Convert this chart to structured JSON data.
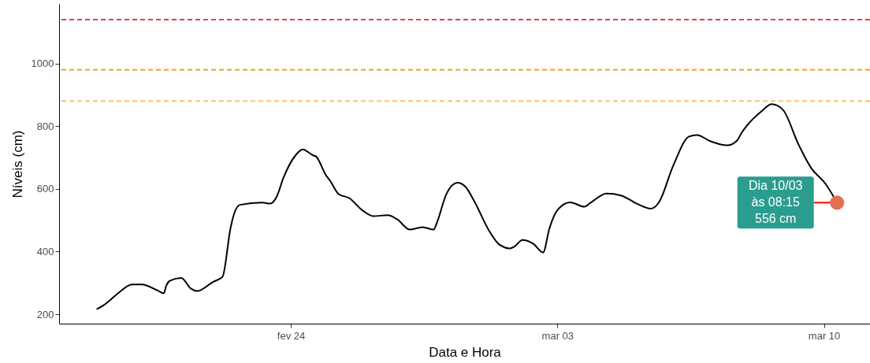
{
  "chart_data": {
    "type": "line",
    "xlabel": "Data e Hora",
    "ylabel": "Níveis (cm)",
    "xlim": [
      "--02-17T22:00",
      "--03-11T05:00"
    ],
    "ylim": [
      170,
      1190
    ],
    "xticks": [
      {
        "value": "--02-24",
        "label": "fev 24"
      },
      {
        "value": "--03-03",
        "label": "mar 03"
      },
      {
        "value": "--03-10",
        "label": "mar 10"
      }
    ],
    "yticks": [
      200,
      400,
      600,
      800,
      1000
    ],
    "grid": false,
    "marker": "none",
    "line_style": "solid",
    "series": [
      {
        "color": "#000000",
        "x": [
          "--02-18T22:00",
          "--02-19T03:00",
          "--02-19T11:00",
          "--02-19T20:00",
          "--02-20T02:00",
          "--02-20T12:00",
          "--02-20T16:00",
          "--02-20T17:30",
          "--02-20T20:00",
          "--02-21T03:00",
          "--02-21T09:00",
          "--02-21T13:00",
          "--02-21T23:00",
          "--02-22T05:00",
          "--02-22T10:00",
          "--02-22T12:00",
          "--02-22T16:00",
          "--02-23T06:00",
          "--02-23T11:00",
          "--02-23T15:00",
          "--02-23T19:30",
          "--02-24T03:00",
          "--02-24T07:30",
          "--02-24T14:00",
          "--02-24T16:00",
          "--02-24T22:00",
          "--02-25T01:00",
          "--02-25T06:00",
          "--02-25T13:00",
          "--02-25T21:00",
          "--02-26T04:00",
          "--02-26T13:00",
          "--02-26T19:00",
          "--02-27T03:00",
          "--02-27T11:00",
          "--02-27T18:00",
          "--02-27T20:00",
          "--02-28T02:00",
          "--02-28T09:00",
          "--02-28T14:00",
          "--02-28T20:00",
          "--03-01T05:00",
          "--03-01T11:00",
          "--03-01T18:00",
          "--03-01T21:00",
          "--03-02T02:00",
          "--03-02T09:00",
          "--03-02T15:00",
          "--03-02T19:00",
          "--03-03T00:00",
          "--03-03T08:00",
          "--03-03T17:00",
          "--03-03T21:00",
          "--03-04T07:00",
          "--03-04T16:00",
          "--03-05T02:00",
          "--03-05T11:00",
          "--03-05T16:00",
          "--03-06T01:00",
          "--03-06T11:00",
          "--03-06T16:00",
          "--03-07T00:00",
          "--03-07T11:00",
          "--03-07T17:00",
          "--03-07T20:00",
          "--03-07T23:00",
          "--03-08T09:00",
          "--03-08T15:00",
          "--03-08T22:00",
          "--03-09T08:00",
          "--03-09T16:00",
          "--03-10T01:00",
          "--03-10T08:15"
        ],
        "values": [
          217,
          232,
          266,
          295,
          295,
          276,
          267,
          291,
          307,
          316,
          282,
          274,
          303,
          320,
          474,
          516,
          549,
          556,
          553,
          574,
          637,
          707,
          726,
          707,
          703,
          645,
          624,
          584,
          570,
          532,
          513,
          516,
          503,
          470,
          478,
          470,
          491,
          583,
          620,
          607,
          557,
          466,
          424,
          410,
          416,
          437,
          424,
          397,
          474,
          532,
          557,
          543,
          556,
          585,
          579,
          553,
          537,
          557,
          674,
          767,
          772,
          753,
          739,
          753,
          778,
          799,
          849,
          870,
          853,
          741,
          666,
          616,
          556
        ]
      }
    ],
    "ref_lines": [
      {
        "axis": "y",
        "value": 1140,
        "color": "#e3262b",
        "line_style": "dashed"
      },
      {
        "axis": "y",
        "value": 980,
        "color": "#ff8c00",
        "line_style": "dashed"
      },
      {
        "axis": "y",
        "value": 880,
        "color": "#ffb84d",
        "line_style": "dashed"
      }
    ],
    "annotations": [
      {
        "text": "Dia 10/03\nàs 08:15\n556 cm",
        "x": "--03-10T08:15",
        "y": 556
      }
    ]
  }
}
